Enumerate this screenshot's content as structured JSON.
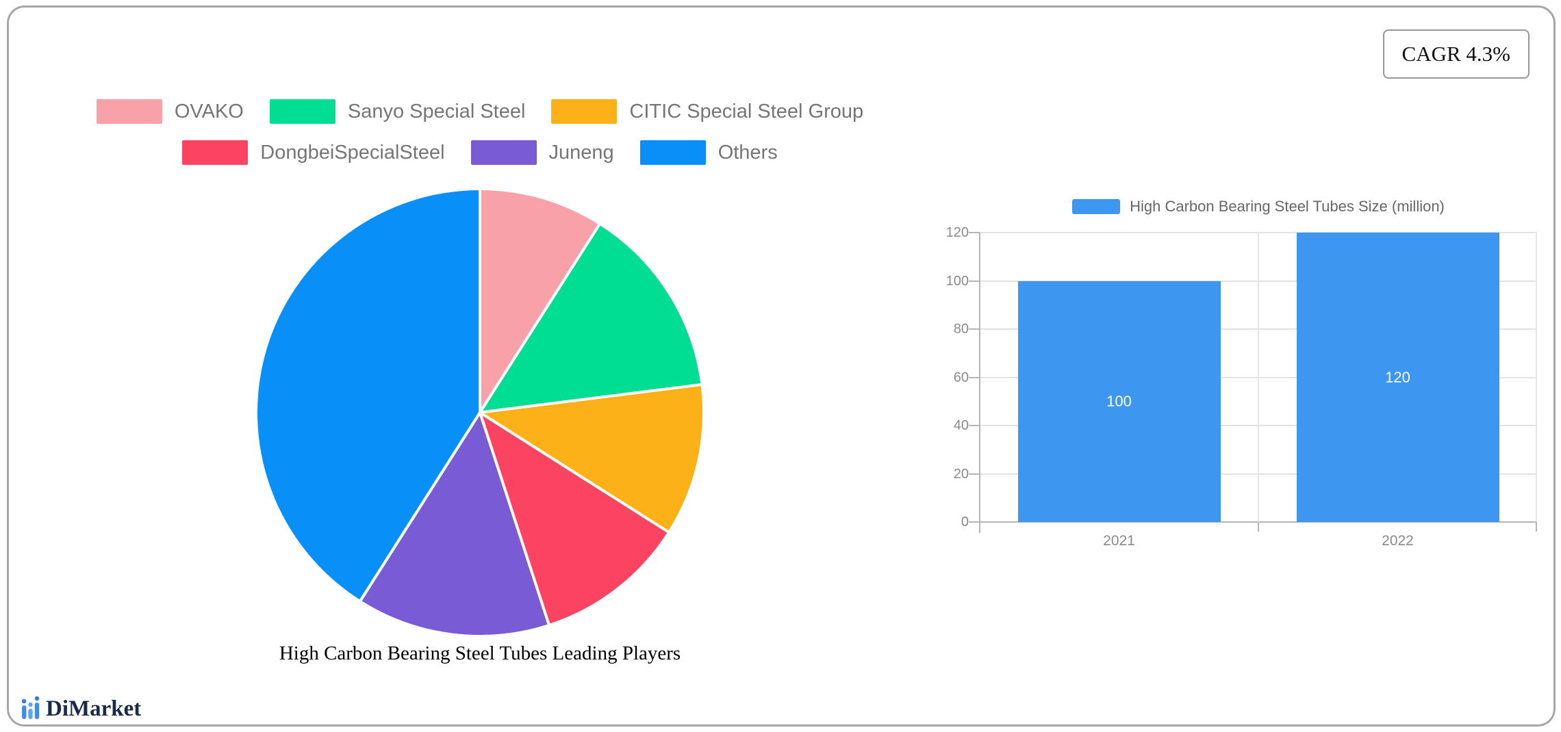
{
  "cagr_badge": {
    "label": "CAGR 4.3%"
  },
  "brand": {
    "name": "DiMarket",
    "icon": "mini-bar-chart-logo-icon",
    "text_color": "#1b2a49",
    "icon_color": "#3d8cee"
  },
  "chart_data": [
    {
      "type": "pie",
      "title": "High Carbon Bearing Steel Tubes Leading Players",
      "legend_position": "top",
      "start_angle_deg": 0,
      "series": [
        {
          "label": "OVAKO",
          "value": 9,
          "color": "#F9A1A8"
        },
        {
          "label": "Sanyo Special Steel",
          "value": 14,
          "color": "#00DE94"
        },
        {
          "label": "CITIC Special Steel Group",
          "value": 11,
          "color": "#FBB117"
        },
        {
          "label": "DongbeiSpecialSteel",
          "value": 11,
          "color": "#FC4361"
        },
        {
          "label": "Juneng",
          "value": 14,
          "color": "#7A5BD6"
        },
        {
          "label": "Others",
          "value": 41,
          "color": "#0890F8"
        }
      ],
      "legend_rows": [
        3,
        3
      ]
    },
    {
      "type": "bar",
      "legend_label": "High Carbon Bearing Steel Tubes Size (million)",
      "legend_position": "top",
      "categories": [
        "2021",
        "2022"
      ],
      "values": [
        100,
        120
      ],
      "value_labels": [
        "100",
        "120"
      ],
      "bar_color": "#3D96F0",
      "ylim": [
        0,
        120
      ],
      "yticks": [
        0,
        20,
        40,
        60,
        80,
        100,
        120
      ],
      "grid": true,
      "xlabel": "",
      "ylabel": ""
    }
  ]
}
